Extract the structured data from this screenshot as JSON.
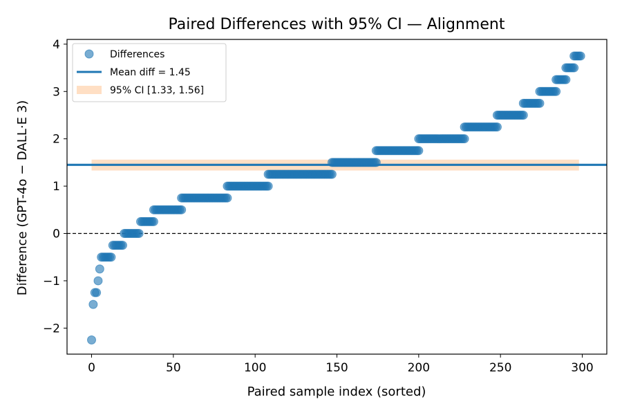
{
  "chart_data": {
    "type": "scatter",
    "title": "Paired Differences with 95% CI — Alignment",
    "xlabel": "Paired sample index (sorted)",
    "ylabel": "Difference (GPT-4o − DALL·E 3)",
    "xlim": [
      -15,
      315
    ],
    "ylim": [
      -2.55,
      4.1
    ],
    "xticks": [
      0,
      50,
      100,
      150,
      200,
      250,
      300
    ],
    "yticks": [
      -2,
      -1,
      0,
      1,
      2,
      3,
      4
    ],
    "xtick_labels": [
      "0",
      "50",
      "100",
      "150",
      "200",
      "250",
      "300"
    ],
    "ytick_labels": [
      "−2",
      "−1",
      "0",
      "1",
      "2",
      "3",
      "4"
    ],
    "grid": false,
    "legend_position": "upper left",
    "legend": [
      {
        "label": "Differences",
        "kind": "marker"
      },
      {
        "label": "Mean diff = 1.45",
        "kind": "line"
      },
      {
        "label": "95% CI [1.33, 1.56]",
        "kind": "band"
      }
    ],
    "mean": 1.45,
    "ci": [
      1.33,
      1.56
    ],
    "ci_x_range": [
      0,
      298
    ],
    "zero_line": 0,
    "colors": {
      "points": "#1f77b4",
      "mean": "#1f77b4",
      "ci": "#ffdfc4",
      "zero": "#000000"
    },
    "series": [
      {
        "name": "Differences",
        "runs": [
          {
            "value": -2.25,
            "start": 0,
            "end": 0
          },
          {
            "value": -1.5,
            "start": 1,
            "end": 1
          },
          {
            "value": -1.25,
            "start": 2,
            "end": 3
          },
          {
            "value": -1.0,
            "start": 4,
            "end": 4
          },
          {
            "value": -0.75,
            "start": 5,
            "end": 5
          },
          {
            "value": -0.5,
            "start": 6,
            "end": 12
          },
          {
            "value": -0.25,
            "start": 13,
            "end": 19
          },
          {
            "value": 0.0,
            "start": 20,
            "end": 29
          },
          {
            "value": 0.25,
            "start": 30,
            "end": 38
          },
          {
            "value": 0.5,
            "start": 38,
            "end": 55
          },
          {
            "value": 0.75,
            "start": 55,
            "end": 83
          },
          {
            "value": 1.0,
            "start": 83,
            "end": 108
          },
          {
            "value": 1.25,
            "start": 108,
            "end": 147
          },
          {
            "value": 1.5,
            "start": 147,
            "end": 174
          },
          {
            "value": 1.75,
            "start": 174,
            "end": 200
          },
          {
            "value": 2.0,
            "start": 200,
            "end": 228
          },
          {
            "value": 2.25,
            "start": 228,
            "end": 248
          },
          {
            "value": 2.5,
            "start": 248,
            "end": 264
          },
          {
            "value": 2.75,
            "start": 264,
            "end": 274
          },
          {
            "value": 3.0,
            "start": 274,
            "end": 284
          },
          {
            "value": 3.25,
            "start": 284,
            "end": 290
          },
          {
            "value": 3.5,
            "start": 290,
            "end": 295
          },
          {
            "value": 3.75,
            "start": 295,
            "end": 299
          }
        ]
      }
    ]
  }
}
